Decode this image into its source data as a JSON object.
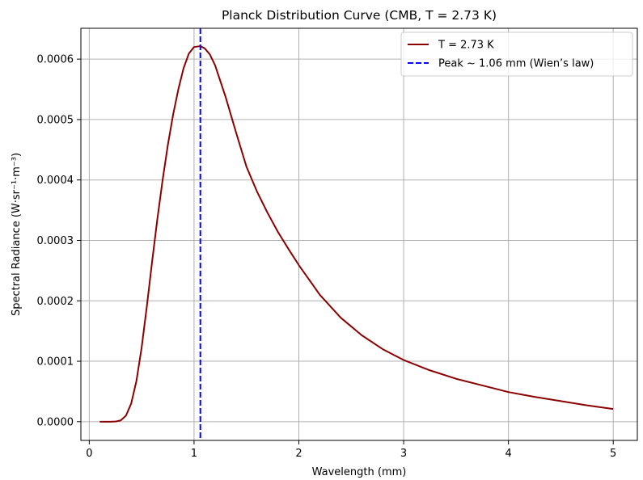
{
  "chart_data": {
    "type": "line",
    "title": "Planck Distribution Curve (CMB, T = 2.73 K)",
    "xlabel": "Wavelength (mm)",
    "ylabel": "Spectral Radiance (W·sr⁻¹·m⁻³)",
    "xlim": [
      -0.08,
      5.23
    ],
    "ylim": [
      -3.1e-05,
      0.000651
    ],
    "xticks": [
      0,
      1,
      2,
      3,
      4,
      5
    ],
    "xtick_labels": [
      "0",
      "1",
      "2",
      "3",
      "4",
      "5"
    ],
    "yticks": [
      0.0,
      0.0001,
      0.0002,
      0.0003,
      0.0004,
      0.0005,
      0.0006
    ],
    "ytick_labels": [
      "0.0000",
      "0.0001",
      "0.0002",
      "0.0003",
      "0.0004",
      "0.0005",
      "0.0006"
    ],
    "grid": true,
    "legend_position": "upper right",
    "series": [
      {
        "name": "T = 2.73 K",
        "color": "#8b0000",
        "style": "solid",
        "x": [
          0.1,
          0.15,
          0.2,
          0.25,
          0.3,
          0.35,
          0.4,
          0.45,
          0.5,
          0.55,
          0.6,
          0.65,
          0.7,
          0.75,
          0.8,
          0.85,
          0.9,
          0.95,
          1.0,
          1.06,
          1.1,
          1.15,
          1.2,
          1.3,
          1.4,
          1.5,
          1.6,
          1.7,
          1.8,
          1.9,
          2.0,
          2.2,
          2.4,
          2.6,
          2.8,
          3.0,
          3.25,
          3.5,
          3.75,
          4.0,
          4.25,
          4.5,
          4.75,
          5.0
        ],
        "y": [
          0.0,
          0.0,
          0.0,
          2e-07,
          2.1e-06,
          9.9e-06,
          2.99e-05,
          6.73e-05,
          0.0001229,
          0.0001917,
          0.0002654,
          0.0003355,
          0.0004,
          0.000458,
          0.000508,
          0.00055,
          0.000585,
          0.000609,
          0.00062,
          0.0006215,
          0.000618,
          0.000608,
          0.00059,
          0.000538,
          0.000479,
          0.000422,
          0.000381,
          0.000346,
          0.000314,
          0.000286,
          0.000259,
          0.00021,
          0.000172,
          0.000143,
          0.00012,
          0.000102,
          8.5e-05,
          7.1e-05,
          6e-05,
          4.9e-05,
          4.1e-05,
          3.4e-05,
          2.7e-05,
          2.1e-05
        ]
      },
      {
        "name": "Peak ~ 1.06 mm (Wien’s law)",
        "color": "#0000ff",
        "style": "dashed",
        "x": 1.06
      }
    ]
  }
}
